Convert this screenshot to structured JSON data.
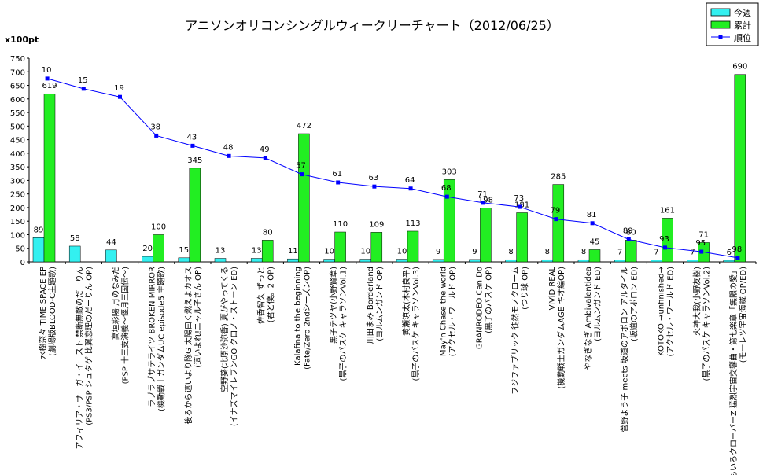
{
  "chart_data": {
    "type": "bar",
    "title": "アニソンオリコンシングルウィークリーチャート（2012/06/25）",
    "ylabel": "x100pt",
    "ylim": [
      0,
      750
    ],
    "y2lim": [
      0,
      100
    ],
    "yticks": [
      0,
      50,
      100,
      150,
      200,
      250,
      300,
      350,
      400,
      450,
      500,
      550,
      600,
      650,
      700,
      750
    ],
    "grid": false,
    "legend_position": "top-right",
    "categories": [
      [
        "水樹奈々 TIME SPACE EP",
        "(劇場版BLOOD-C主題歌)"
      ],
      [
        "アフィリア・サーガ・イースト 禁断無敵のだーりん",
        "(PS3/PSP シュタゲ 比翼恋理のだーりん OP)"
      ],
      [
        "高垣彩陽 月のなみだ",
        "(PSP 十三支演義～偃月三国伝～)"
      ],
      [
        "ラブラブサテライツ BROKEN MIRROR",
        "(機動戦士ガンダムUC episode5 主題歌)"
      ],
      [
        "後ろから這いより隊G 太陽曰く燃えよカオス",
        "(這いよれ!ニャル子さん OP)"
      ],
      [
        "空野葵(北原沙弥香) 夏がやってくる",
        "(イナズマイレブンGO クロノ・ストーン ED)"
      ],
      [
        "佐香智久 ずっと",
        "(君と僕。2 OP)"
      ],
      [
        "Kalafina to the beginning",
        "(Fate/Zero 2ndシーズンOP)"
      ],
      [
        "黒子テツヤ(小野賢章)",
        "(黒子のバスケ キャラソンVol.1)"
      ],
      [
        "川田まみ Borderland",
        "(ヨルムンガンド OP)"
      ],
      [
        "黄瀬涼太(木村良平)",
        "(黒子のバスケ キャラソンVol.3)"
      ],
      [
        "May'n Chase the world",
        "(アクセル・ワールド OP)"
      ],
      [
        "GRANRODEO Can Do",
        "(黒子のバスケ OP)"
      ],
      [
        "フジファブリック 徒然モノクローム",
        "(つり球 OP)"
      ],
      [
        "ViViD REAL",
        "(機動戦士ガンダムAGE キオ編OP)"
      ],
      [
        "やなぎなぎ Ambivalentidea",
        "(ヨルムンガンド ED)"
      ],
      [
        "菅野よう子 meets 坂道のアポロン アルタイル",
        "(坂道のアポロン ED)"
      ],
      [
        "KOTOKO →unfinished→",
        "(アクセル・ワールド ED)"
      ],
      [
        "火神大我(小野友樹)",
        "(黒子のバスケ キャラソンVol.2)"
      ],
      [
        "ももいろクローバーZ 猛烈宇宙交響曲・第七楽章「無限の愛」",
        "(モーレツ宇宙海賊 OP/ED)"
      ]
    ],
    "series": [
      {
        "name": "今週",
        "type": "bar",
        "color": "#33f0f0",
        "values": [
          89,
          58,
          44,
          20,
          15,
          13,
          13,
          11,
          10,
          10,
          10,
          9,
          9,
          8,
          8,
          8,
          7,
          7,
          7,
          6
        ]
      },
      {
        "name": "累計",
        "type": "bar",
        "color": "#22ee22",
        "values": [
          619,
          null,
          null,
          100,
          345,
          null,
          80,
          472,
          110,
          109,
          113,
          303,
          198,
          181,
          285,
          45,
          80,
          161,
          71,
          690
        ]
      },
      {
        "name": "順位",
        "type": "line",
        "axis": "right",
        "color": "#0000ff",
        "values": [
          10,
          15,
          19,
          38,
          43,
          48,
          49,
          57,
          61,
          63,
          64,
          68,
          71,
          73,
          79,
          81,
          89,
          93,
          95,
          98
        ]
      }
    ]
  }
}
